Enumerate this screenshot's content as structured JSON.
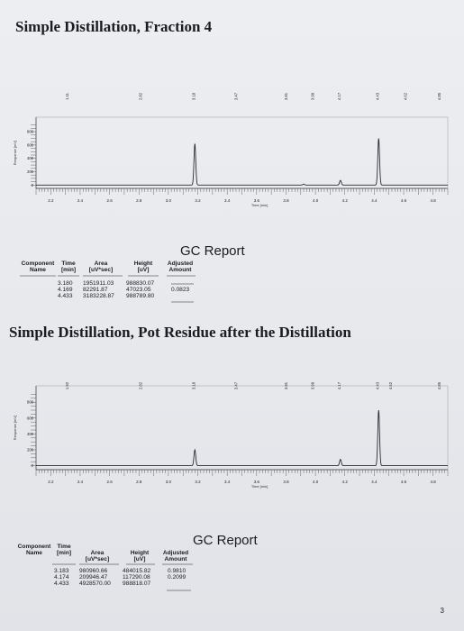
{
  "page": {
    "section1_title": "Simple Distillation, Fraction 4",
    "section2_title": "Simple Distillation, Pot Residue after the Distillation",
    "page_number": "3"
  },
  "chart_data": [
    {
      "type": "line",
      "name": "fraction-4-chromatogram",
      "xlabel": "Time [min]",
      "ylabel": "Response [mV]",
      "x_ticks": [
        "2.2",
        "2.4",
        "2.6",
        "2.8",
        "3.0",
        "3.2",
        "3.4",
        "3.6",
        "3.8",
        "4.0",
        "4.2",
        "4.4",
        "4.6",
        "4.8"
      ],
      "y_ticks": [
        "800",
        "600",
        "400",
        "200",
        "0"
      ],
      "xlim": [
        2.1,
        4.9
      ],
      "ylim": [
        -50,
        950
      ],
      "peak_labels": [
        "1.11",
        "2.82",
        "3.18",
        "3.47",
        "3.81",
        "3.99",
        "4.17",
        "4.43",
        "4.62",
        "4.85"
      ],
      "peaks": [
        {
          "time": 3.18,
          "height": 620
        },
        {
          "time": 3.92,
          "height": 15
        },
        {
          "time": 4.17,
          "height": 70
        },
        {
          "time": 4.43,
          "height": 700
        }
      ]
    },
    {
      "type": "line",
      "name": "pot-residue-chromatogram",
      "xlabel": "Time [min]",
      "ylabel": "Response [mV]",
      "x_ticks": [
        "2.2",
        "2.4",
        "2.6",
        "2.8",
        "3.0",
        "3.2",
        "3.4",
        "3.6",
        "3.8",
        "4.0",
        "4.2",
        "4.4",
        "4.6",
        "4.8"
      ],
      "y_ticks": [
        "800",
        "600",
        "400",
        "200",
        "0"
      ],
      "xlim": [
        2.1,
        4.9
      ],
      "ylim": [
        -50,
        950
      ],
      "peak_labels": [
        "1.92",
        "2.82",
        "3.18",
        "3.47",
        "3.81",
        "3.99",
        "4.17",
        "4.43",
        "4.52",
        "4.85"
      ],
      "peaks": [
        {
          "time": 3.18,
          "height": 200
        },
        {
          "time": 4.17,
          "height": 80
        },
        {
          "time": 4.43,
          "height": 700
        }
      ]
    }
  ],
  "report1": {
    "title": "GC Report",
    "headers": {
      "component": "Component Name",
      "time": "Time [min]",
      "area": "Area [uV*sec]",
      "height": "Height [uV]",
      "adjusted": "Adjusted Amount"
    },
    "rows": [
      {
        "time": "3.180",
        "area": "1951911.03",
        "height": "988830.07",
        "amount": ""
      },
      {
        "time": "4.169",
        "area": "82291.87",
        "height": "47023.05",
        "amount": "0.0823"
      },
      {
        "time": "4.433",
        "area": "3183228.87",
        "height": "988789.80",
        "amount": ""
      }
    ]
  },
  "report2": {
    "title": "GC Report",
    "headers": {
      "component": "Component Name",
      "time": "Time [min]",
      "area": "Area [uV*sec]",
      "height": "Height [uV]",
      "adjusted": "Adjusted Amount"
    },
    "rows": [
      {
        "time": "3.183",
        "area": "980960.66",
        "height": "484015.82",
        "amount": "0.9810"
      },
      {
        "time": "4.174",
        "area": "209946.47",
        "height": "117290.08",
        "amount": "0.2099"
      },
      {
        "time": "4.433",
        "area": "4928570.00",
        "height": "988818.07",
        "amount": ""
      }
    ]
  }
}
